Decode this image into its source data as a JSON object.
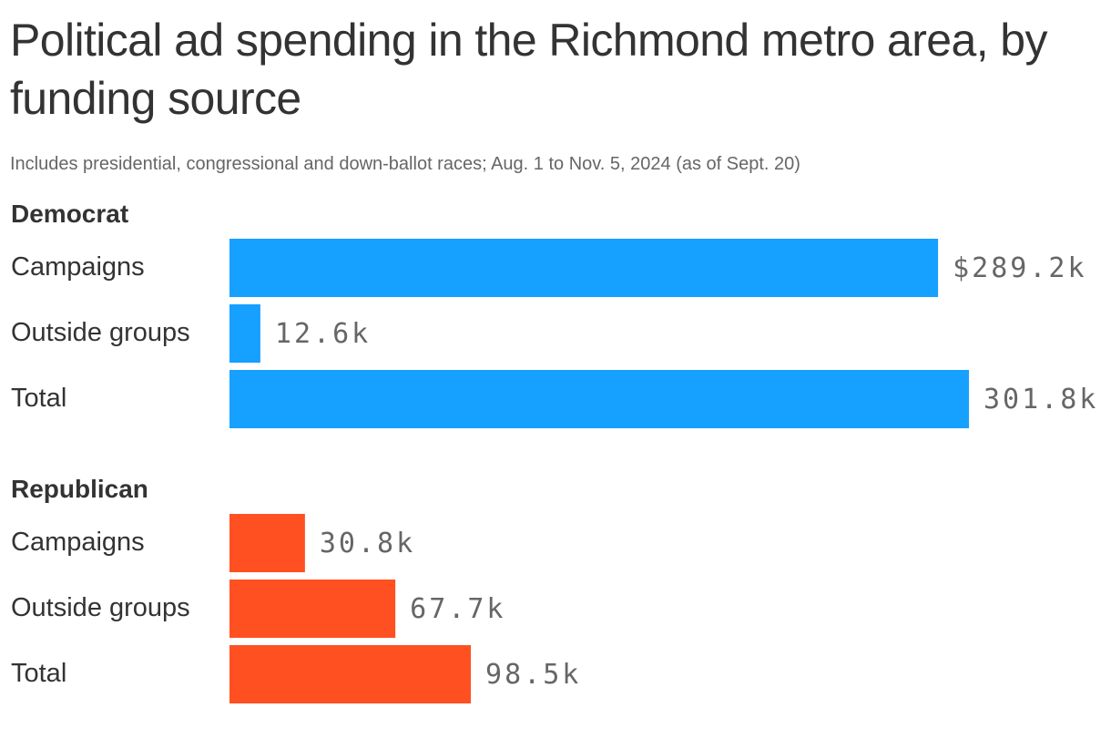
{
  "chart_data": {
    "type": "bar",
    "orientation": "horizontal",
    "title": "Political ad spending in the Richmond metro area, by funding source",
    "subtitle": "Includes presidential, congressional and down-ballot races; Aug. 1 to Nov. 5, 2024 (as of Sept. 20)",
    "xlim": [
      0,
      301.8
    ],
    "grid": false,
    "legend": "none",
    "groups": [
      {
        "name": "Democrat",
        "color": "#16a0ff",
        "bars": [
          {
            "category": "Campaigns",
            "value": 289.2,
            "label": "$289.2k"
          },
          {
            "category": "Outside groups",
            "value": 12.6,
            "label": "12.6k"
          },
          {
            "category": "Total",
            "value": 301.8,
            "label": "301.8k"
          }
        ]
      },
      {
        "name": "Republican",
        "color": "#ff5022",
        "bars": [
          {
            "category": "Campaigns",
            "value": 30.8,
            "label": "30.8k"
          },
          {
            "category": "Outside groups",
            "value": 67.7,
            "label": "67.7k"
          },
          {
            "category": "Total",
            "value": 98.5,
            "label": "98.5k"
          }
        ]
      }
    ]
  }
}
